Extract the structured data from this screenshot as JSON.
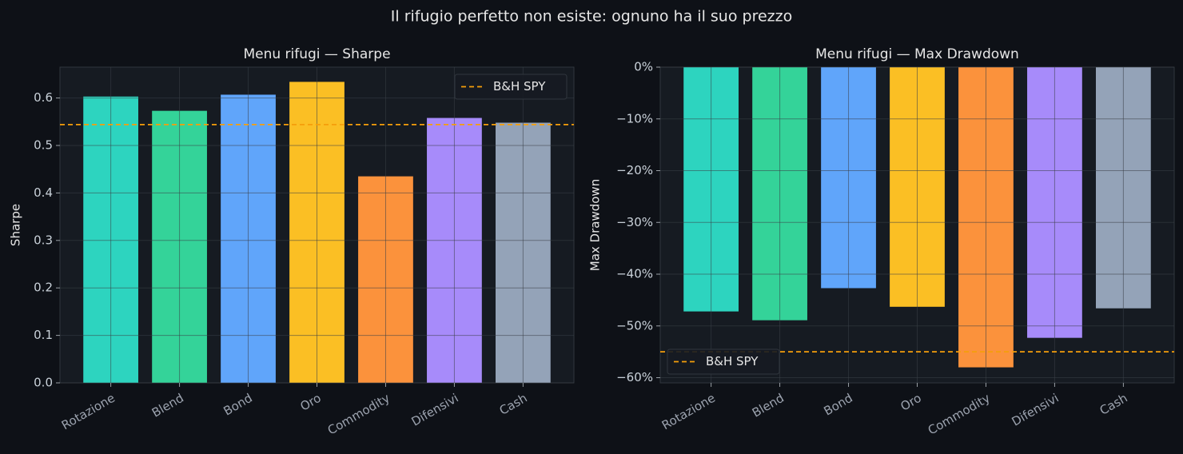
{
  "title": "Il rifugio perfetto non esiste: ognuno ha il suo prezzo",
  "chart_data": [
    {
      "type": "bar",
      "title": "Menu rifugi — Sharpe",
      "y_label": "Sharpe",
      "categories": [
        "Rotazione",
        "Blend",
        "Bond",
        "Oro",
        "Commodity",
        "Difensivi",
        "Cash"
      ],
      "values": [
        0.603,
        0.573,
        0.607,
        0.634,
        0.435,
        0.558,
        0.548
      ],
      "colors": [
        "#2dd4bf",
        "#34d399",
        "#60a5fa",
        "#fbbf24",
        "#fb923c",
        "#a78bfa",
        "#94a3b8"
      ],
      "ylim": [
        0,
        0.665
      ],
      "yticks": [
        {
          "value": 0,
          "label": "0.0"
        },
        0.1,
        0.2,
        0.3,
        0.4,
        0.5,
        0.6
      ],
      "hline": {
        "name": "B&H SPY",
        "value": 0.544,
        "color": "#f59e0b"
      },
      "legend": "upper right",
      "grid": true
    },
    {
      "type": "bar",
      "title": "Menu rifugi — Max Drawdown",
      "y_label": "Max Drawdown",
      "categories": [
        "Rotazione",
        "Blend",
        "Bond",
        "Oro",
        "Commodity",
        "Difensivi",
        "Cash"
      ],
      "values": [
        -47.2,
        -48.9,
        -42.7,
        -46.3,
        -58.0,
        -52.3,
        -46.6
      ],
      "colors": [
        "#2dd4bf",
        "#34d399",
        "#60a5fa",
        "#fbbf24",
        "#fb923c",
        "#a78bfa",
        "#94a3b8"
      ],
      "ylim": [
        -61,
        0
      ],
      "yticks": [
        {
          "value": 0,
          "label": "0%"
        },
        {
          "value": -10,
          "label": "−10%"
        },
        {
          "value": -20,
          "label": "−20%"
        },
        {
          "value": -30,
          "label": "−30%"
        },
        {
          "value": -40,
          "label": "−40%"
        },
        {
          "value": -50,
          "label": "−50%"
        },
        {
          "value": -60,
          "label": "−60%"
        }
      ],
      "hline": {
        "name": "B&H SPY",
        "value": -55.0,
        "color": "#f59e0b"
      },
      "legend": "lower left",
      "grid": true
    }
  ]
}
